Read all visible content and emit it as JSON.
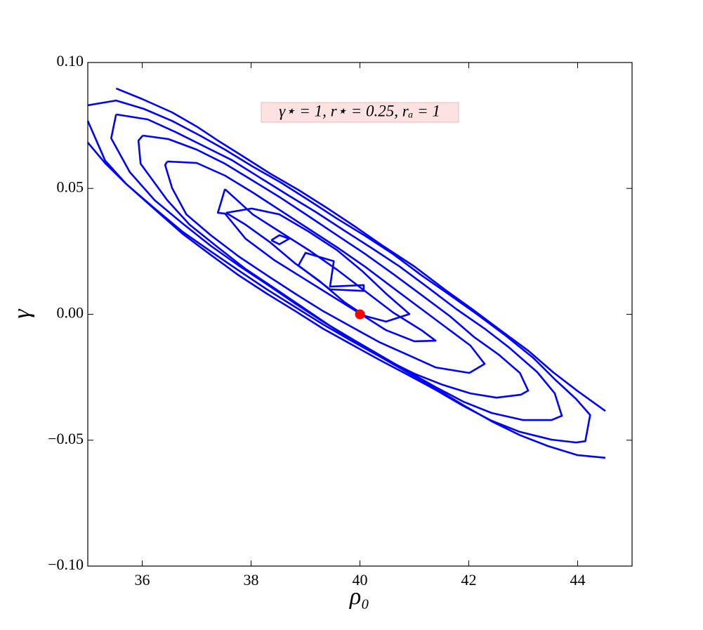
{
  "chart_data": {
    "type": "line",
    "xlabel": "ρ₀",
    "ylabel": "γ",
    "annotation": "γ⋆ = 1, r⋆ = 0.25, rₐ = 1",
    "xlim": [
      35,
      45
    ],
    "xticks": [
      36,
      38,
      40,
      42,
      44
    ],
    "ylim": [
      -0.1,
      0.1
    ],
    "yticks": [
      {
        "value": -0.1,
        "label": "−0.10"
      },
      {
        "value": -0.05,
        "label": "−0.05"
      },
      {
        "value": 0,
        "label": "0.00"
      },
      {
        "value": 0.05,
        "label": "0.05"
      },
      {
        "value": 0.1,
        "label": "0.10"
      }
    ],
    "grid": false,
    "series": [
      {
        "color": "#0000ff",
        "x": [
          35.52,
          36.0,
          36.55,
          37.0,
          37.39,
          37.84,
          38.35,
          38.87,
          39.39,
          39.9,
          40.42,
          41.0,
          41.55,
          42.06,
          42.58,
          43.1,
          43.55,
          44.0,
          44.51,
          null,
          35,
          35.32,
          35.71,
          36.23,
          36.74,
          37.26,
          37.77,
          38.29,
          38.81,
          39.32,
          39.84,
          40.35,
          40.87,
          41.39,
          41.9,
          42.42,
          42.94,
          43.45,
          43.99,
          44.51
        ],
        "values": [
          0.0897,
          0.0855,
          0.0802,
          0.0746,
          0.069,
          0.0629,
          0.0559,
          0.0494,
          0.0423,
          0.035,
          0.0272,
          0.019,
          0.01,
          0.0021,
          -0.0063,
          -0.0146,
          -0.023,
          -0.0305,
          -0.0384,
          null,
          0.0682,
          0.06,
          0.0517,
          0.042,
          0.0328,
          0.025,
          0.0174,
          0.0099,
          0.0029,
          -0.004,
          -0.0105,
          -0.0166,
          -0.023,
          -0.0294,
          -0.0361,
          -0.0425,
          -0.048,
          -0.0523,
          -0.0559,
          -0.057
        ]
      },
      {
        "color": "#0000ff",
        "x": [
          35,
          35.52,
          36.03,
          36.55,
          37.06,
          37.52,
          38.03,
          38.55,
          39.06,
          39.58,
          40.1,
          40.61,
          41.13,
          41.65,
          42.16,
          42.68,
          43.19,
          43.58,
          43.97,
          44.23,
          44.14,
          43.97,
          43.52,
          42.94,
          42.42,
          41.9,
          41.39,
          40.87,
          40.35,
          39.84,
          39.32,
          38.81,
          38.29,
          37.77,
          37.26,
          36.74,
          36.23,
          35.71,
          35.32,
          35
        ],
        "values": [
          0.083,
          0.0849,
          0.0816,
          0.0768,
          0.071,
          0.0654,
          0.0587,
          0.0523,
          0.0453,
          0.038,
          0.0311,
          0.0239,
          0.0155,
          0.0077,
          -0.0001,
          -0.0085,
          -0.0174,
          -0.0258,
          -0.0336,
          -0.04,
          -0.0504,
          -0.0509,
          -0.0498,
          -0.0467,
          -0.0423,
          -0.0364,
          -0.03,
          -0.0239,
          -0.018,
          -0.0119,
          -0.0057,
          0.0013,
          0.0082,
          0.0155,
          0.0236,
          0.032,
          0.0417,
          0.0517,
          0.061,
          0.0768
        ]
      },
      {
        "color": "#0000ff",
        "x": [
          35.52,
          36.1,
          36.61,
          37.13,
          37.65,
          38.16,
          38.68,
          39.19,
          39.71,
          40.23,
          40.74,
          41.26,
          41.77,
          42.29,
          42.74,
          43.26,
          43.58,
          43.71,
          43.52,
          43.0,
          42.42,
          41.9,
          41.39,
          40.87,
          40.35,
          39.84,
          39.32,
          38.81,
          38.29,
          37.77,
          37.26,
          36.74,
          36.23,
          35.77,
          35.43,
          35.52
        ],
        "values": [
          0.0794,
          0.0774,
          0.0724,
          0.0668,
          0.0612,
          0.0543,
          0.0473,
          0.0406,
          0.0333,
          0.0261,
          0.0188,
          0.0105,
          0.0021,
          -0.0057,
          -0.0132,
          -0.023,
          -0.0314,
          -0.0403,
          -0.042,
          -0.042,
          -0.0392,
          -0.0347,
          -0.0289,
          -0.0225,
          -0.016,
          -0.0096,
          -0.0029,
          0.0043,
          0.0119,
          0.0194,
          0.0272,
          0.0361,
          0.0453,
          0.0565,
          0.0699,
          0.0794
        ]
      },
      {
        "color": "#0000ff",
        "x": [
          36.01,
          36.48,
          37.0,
          37.52,
          38.03,
          38.55,
          39.06,
          39.58,
          40.1,
          40.61,
          41.13,
          41.65,
          42.1,
          42.55,
          42.94,
          43.09,
          42.96,
          42.51,
          42.03,
          41.52,
          41.0,
          40.48,
          39.97,
          39.45,
          38.94,
          38.42,
          37.9,
          37.39,
          36.87,
          36.46,
          35.97,
          35.93,
          36.01
        ],
        "values": [
          0.071,
          0.0696,
          0.0654,
          0.0598,
          0.0531,
          0.0462,
          0.0389,
          0.0314,
          0.0239,
          0.016,
          0.0077,
          -0.0007,
          -0.0091,
          -0.016,
          -0.0233,
          -0.0303,
          -0.0319,
          -0.0331,
          -0.0314,
          -0.028,
          -0.0236,
          -0.018,
          -0.0119,
          -0.0046,
          0.0029,
          0.0105,
          0.018,
          0.0266,
          0.0356,
          0.0453,
          0.0598,
          0.069,
          0.071
        ]
      },
      {
        "color": "#0000ff",
        "x": [
          36.46,
          37.0,
          37.52,
          38.03,
          38.55,
          39.06,
          39.58,
          40.1,
          40.61,
          41.13,
          41.65,
          42.03,
          42.29,
          42.01,
          41.39,
          40.87,
          40.35,
          39.84,
          39.32,
          38.81,
          38.29,
          37.77,
          37.26,
          36.81,
          36.55,
          36.42,
          36.46
        ],
        "values": [
          0.0607,
          0.0601,
          0.0551,
          0.0484,
          0.0411,
          0.0339,
          0.0266,
          0.0188,
          0.0105,
          0.0021,
          -0.0063,
          -0.0124,
          -0.0197,
          -0.0233,
          -0.0211,
          -0.016,
          -0.011,
          -0.0049,
          0.0013,
          0.0082,
          0.0155,
          0.023,
          0.0314,
          0.0397,
          0.0501,
          0.0593,
          0.0607
        ]
      },
      {
        "color": "#0000ff",
        "x": [
          37.52,
          38.03,
          38.55,
          39.06,
          39.58,
          40.1,
          40.61,
          41.13,
          41.39,
          41.0,
          40.48,
          39.97,
          39.45,
          38.94,
          38.42,
          37.9,
          37.52,
          37.39,
          37.52
        ],
        "values": [
          0.0497,
          0.0397,
          0.0325,
          0.0255,
          0.0177,
          0.0091,
          0.0007,
          -0.0063,
          -0.0105,
          -0.0107,
          -0.0063,
          0.0007,
          0.0077,
          0.0146,
          0.0216,
          0.03,
          0.04,
          0.0403,
          0.0497
        ]
      },
      {
        "color": "#0000ff",
        "x": [
          37.54,
          38.01,
          38.52,
          39.06,
          39.58,
          40.03,
          40.48,
          40.91,
          40.48,
          40.1,
          39.71,
          39.26,
          38.81,
          38.35,
          37.9,
          37.54
        ],
        "values": [
          0.0403,
          0.042,
          0.0397,
          0.0328,
          0.0255,
          0.0174,
          0.0082,
          0.0001,
          -0.0029,
          -0.0007,
          0.0049,
          0.0132,
          0.0202,
          0.0286,
          0.0356,
          0.0403
        ]
      },
      {
        "color": "#0000ff",
        "x": [
          38.37,
          38.52,
          38.7,
          38.52,
          38.37,
          null,
          38.87,
          39.0,
          39.52,
          39.45,
          40.07,
          40.07,
          39.45,
          38.87
        ],
        "values": [
          0.0294,
          0.0314,
          0.03,
          0.0278,
          0.0294,
          null,
          0.0194,
          0.0244,
          0.0211,
          0.011,
          0.0116,
          0.0093,
          0.0099,
          0.0194
        ]
      }
    ],
    "marker": {
      "x": 40,
      "y": 0,
      "color": "#ff0000"
    }
  }
}
